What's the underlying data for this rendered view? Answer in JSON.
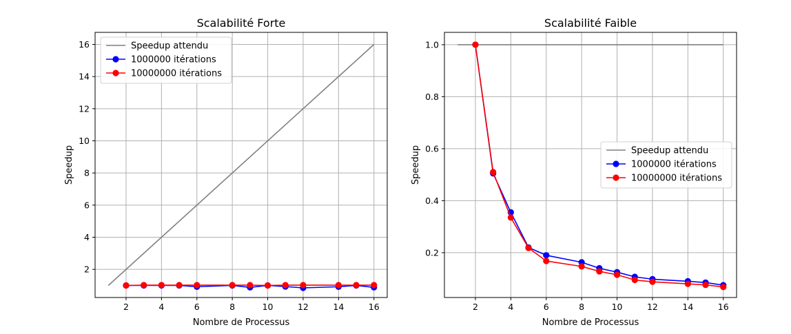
{
  "chart_data": [
    {
      "type": "line",
      "title": "Scalabilité Forte",
      "xlabel": "Nombre de Processus",
      "ylabel": "Speedup",
      "xlim": [
        0.25,
        16.75
      ],
      "ylim": [
        0.25,
        16.75
      ],
      "xticks": [
        2,
        4,
        6,
        8,
        10,
        12,
        14,
        16
      ],
      "yticks": [
        2,
        4,
        6,
        8,
        10,
        12,
        14,
        16
      ],
      "grid": true,
      "legend_position": "top-left",
      "series": [
        {
          "name": "Speedup attendu",
          "color": "#808080",
          "marker": "none",
          "x": [
            1,
            16
          ],
          "y": [
            1,
            16
          ]
        },
        {
          "name": "1000000 itérations",
          "color": "#0000ff",
          "marker": "circle",
          "x": [
            2,
            3,
            4,
            5,
            6,
            8,
            9,
            10,
            11,
            12,
            14,
            15,
            16
          ],
          "y": [
            1.0,
            1.0,
            1.0,
            1.0,
            0.92,
            1.0,
            0.88,
            1.0,
            0.93,
            0.85,
            0.92,
            1.0,
            0.88
          ]
        },
        {
          "name": "10000000 itérations",
          "color": "#ff0000",
          "marker": "circle",
          "x": [
            2,
            3,
            4,
            5,
            6,
            8,
            9,
            10,
            11,
            12,
            14,
            15,
            16
          ],
          "y": [
            1.0,
            1.02,
            1.02,
            1.02,
            1.02,
            1.02,
            1.02,
            1.0,
            1.02,
            1.02,
            1.02,
            1.02,
            1.02
          ]
        }
      ]
    },
    {
      "type": "line",
      "title": "Scalabilité Faible",
      "xlabel": "Nombre de Processus",
      "ylabel": "Speedup",
      "xlim": [
        0.25,
        16.75
      ],
      "ylim": [
        0.0275,
        1.0475
      ],
      "xticks": [
        2,
        4,
        6,
        8,
        10,
        12,
        14,
        16
      ],
      "yticks": [
        0.2,
        0.4,
        0.6,
        0.8,
        1.0
      ],
      "ytick_labels": [
        "0.2",
        "0.4",
        "0.6",
        "0.8",
        "1.0"
      ],
      "grid": true,
      "legend_position": "center-right",
      "series": [
        {
          "name": "Speedup attendu",
          "color": "#808080",
          "marker": "none",
          "x": [
            1,
            16
          ],
          "y": [
            1.0,
            1.0
          ]
        },
        {
          "name": "1000000 itérations",
          "color": "#0000ff",
          "marker": "circle",
          "x": [
            2,
            3,
            4,
            5,
            6,
            8,
            9,
            10,
            11,
            12,
            14,
            15,
            16
          ],
          "y": [
            1.0,
            0.505,
            0.355,
            0.22,
            0.19,
            0.163,
            0.14,
            0.125,
            0.107,
            0.098,
            0.09,
            0.085,
            0.075
          ]
        },
        {
          "name": "10000000 itérations",
          "color": "#ff0000",
          "marker": "circle",
          "x": [
            2,
            3,
            4,
            5,
            6,
            8,
            9,
            10,
            11,
            12,
            14,
            15,
            16
          ],
          "y": [
            1.0,
            0.51,
            0.335,
            0.218,
            0.168,
            0.147,
            0.128,
            0.115,
            0.095,
            0.088,
            0.08,
            0.076,
            0.068
          ]
        }
      ]
    }
  ]
}
